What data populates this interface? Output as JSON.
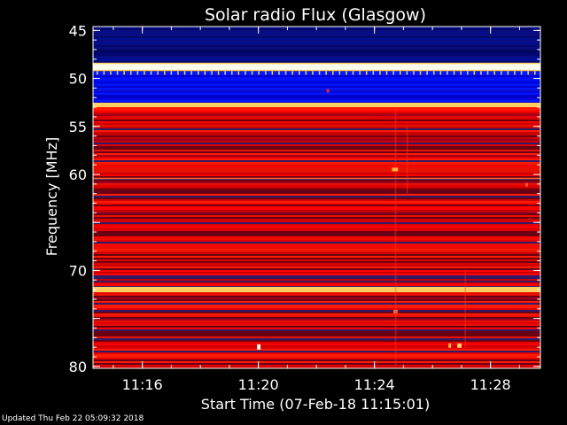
{
  "footer": {
    "updated_text": "Updated Thu Feb 22 05:09:32 2018"
  },
  "chart_data": {
    "type": "heatmap",
    "title": "Solar radio Flux (Glasgow)",
    "xlabel": "Start Time (07-Feb-18 11:15:01)",
    "ylabel": "Frequency [MHz]",
    "x_ticks": [
      {
        "label": "11:16",
        "minutes": 1
      },
      {
        "label": "11:20",
        "minutes": 5
      },
      {
        "label": "11:24",
        "minutes": 9
      },
      {
        "label": "11:28",
        "minutes": 13
      }
    ],
    "xlim_minutes": [
      -0.7,
      14.72
    ],
    "y_ticks": [
      45,
      50,
      55,
      60,
      65,
      70,
      75,
      80
    ],
    "y_tick_labels_shown": [
      "45",
      "50",
      "55",
      "60",
      "70",
      "80"
    ],
    "ylim": [
      44.6,
      80.2
    ],
    "frequency_bands": [
      {
        "from": 44.6,
        "to": 45.3,
        "level": "dark-blue"
      },
      {
        "from": 45.3,
        "to": 48.4,
        "level": "dark-blue"
      },
      {
        "from": 48.4,
        "to": 49.2,
        "level": "white-hot"
      },
      {
        "from": 49.2,
        "to": 52.6,
        "level": "blue"
      },
      {
        "from": 52.6,
        "to": 53.0,
        "level": "yellow"
      },
      {
        "from": 53.0,
        "to": 71.8,
        "level": "red"
      },
      {
        "from": 71.8,
        "to": 72.3,
        "level": "yellow"
      },
      {
        "from": 72.3,
        "to": 80.2,
        "level": "red"
      }
    ],
    "colors": {
      "background": "#000000",
      "dark_blue": "#000a6e",
      "blue": "#0010ff",
      "red": "#e00000",
      "dark_red": "#6a0014",
      "purple": "#301a6a",
      "yellow": "#ffd060",
      "white_hot": "#fffff0"
    }
  }
}
